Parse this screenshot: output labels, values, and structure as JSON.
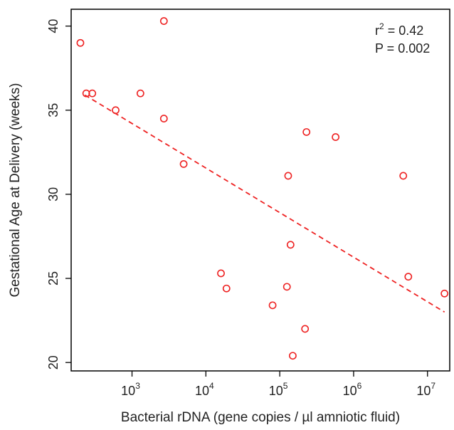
{
  "chart_data": {
    "type": "scatter",
    "xlabel": "Bacterial rDNA  (gene copies / µl amniotic fluid)",
    "ylabel": "Gestational Age at Delivery  (weeks)",
    "xscale": "log10",
    "xlim": [
      150,
      20000000
    ],
    "ylim": [
      19.5,
      41.0
    ],
    "x_ticks": [
      {
        "value": 1000,
        "base": "10",
        "exp": "3"
      },
      {
        "value": 10000,
        "base": "10",
        "exp": "4"
      },
      {
        "value": 100000,
        "base": "10",
        "exp": "5"
      },
      {
        "value": 1000000,
        "base": "10",
        "exp": "6"
      },
      {
        "value": 10000000,
        "base": "10",
        "exp": "7"
      }
    ],
    "y_ticks": [
      {
        "value": 20,
        "label": "20"
      },
      {
        "value": 25,
        "label": "25"
      },
      {
        "value": 30,
        "label": "30"
      },
      {
        "value": 35,
        "label": "35"
      },
      {
        "value": 40,
        "label": "40"
      }
    ],
    "points": [
      {
        "x": 200,
        "y": 39.0
      },
      {
        "x": 240,
        "y": 36.0
      },
      {
        "x": 290,
        "y": 36.0
      },
      {
        "x": 600,
        "y": 35.0
      },
      {
        "x": 1300,
        "y": 36.0
      },
      {
        "x": 2700,
        "y": 40.3
      },
      {
        "x": 2700,
        "y": 34.5
      },
      {
        "x": 5000,
        "y": 31.8
      },
      {
        "x": 16000,
        "y": 25.3
      },
      {
        "x": 19000,
        "y": 24.4
      },
      {
        "x": 80000,
        "y": 23.4
      },
      {
        "x": 125000,
        "y": 24.5
      },
      {
        "x": 130000,
        "y": 31.1
      },
      {
        "x": 140000,
        "y": 27.0
      },
      {
        "x": 150000,
        "y": 20.4
      },
      {
        "x": 220000,
        "y": 22.0
      },
      {
        "x": 230000,
        "y": 33.7
      },
      {
        "x": 570000,
        "y": 33.4
      },
      {
        "x": 4700000,
        "y": 31.1
      },
      {
        "x": 5500000,
        "y": 25.1
      },
      {
        "x": 17000000,
        "y": 24.1
      }
    ],
    "regression_line": {
      "x": [
        230,
        17000000
      ],
      "y": [
        35.9,
        23.0
      ],
      "style": "dashed"
    },
    "annotation": {
      "r2_base": "r",
      "r2_exp": "2",
      "r2_value": " = 0.42",
      "p_text": "P = 0.002"
    },
    "grid": false,
    "colors": {
      "points": "#ee2222",
      "line": "#ee2222",
      "axis": "#000000"
    }
  }
}
